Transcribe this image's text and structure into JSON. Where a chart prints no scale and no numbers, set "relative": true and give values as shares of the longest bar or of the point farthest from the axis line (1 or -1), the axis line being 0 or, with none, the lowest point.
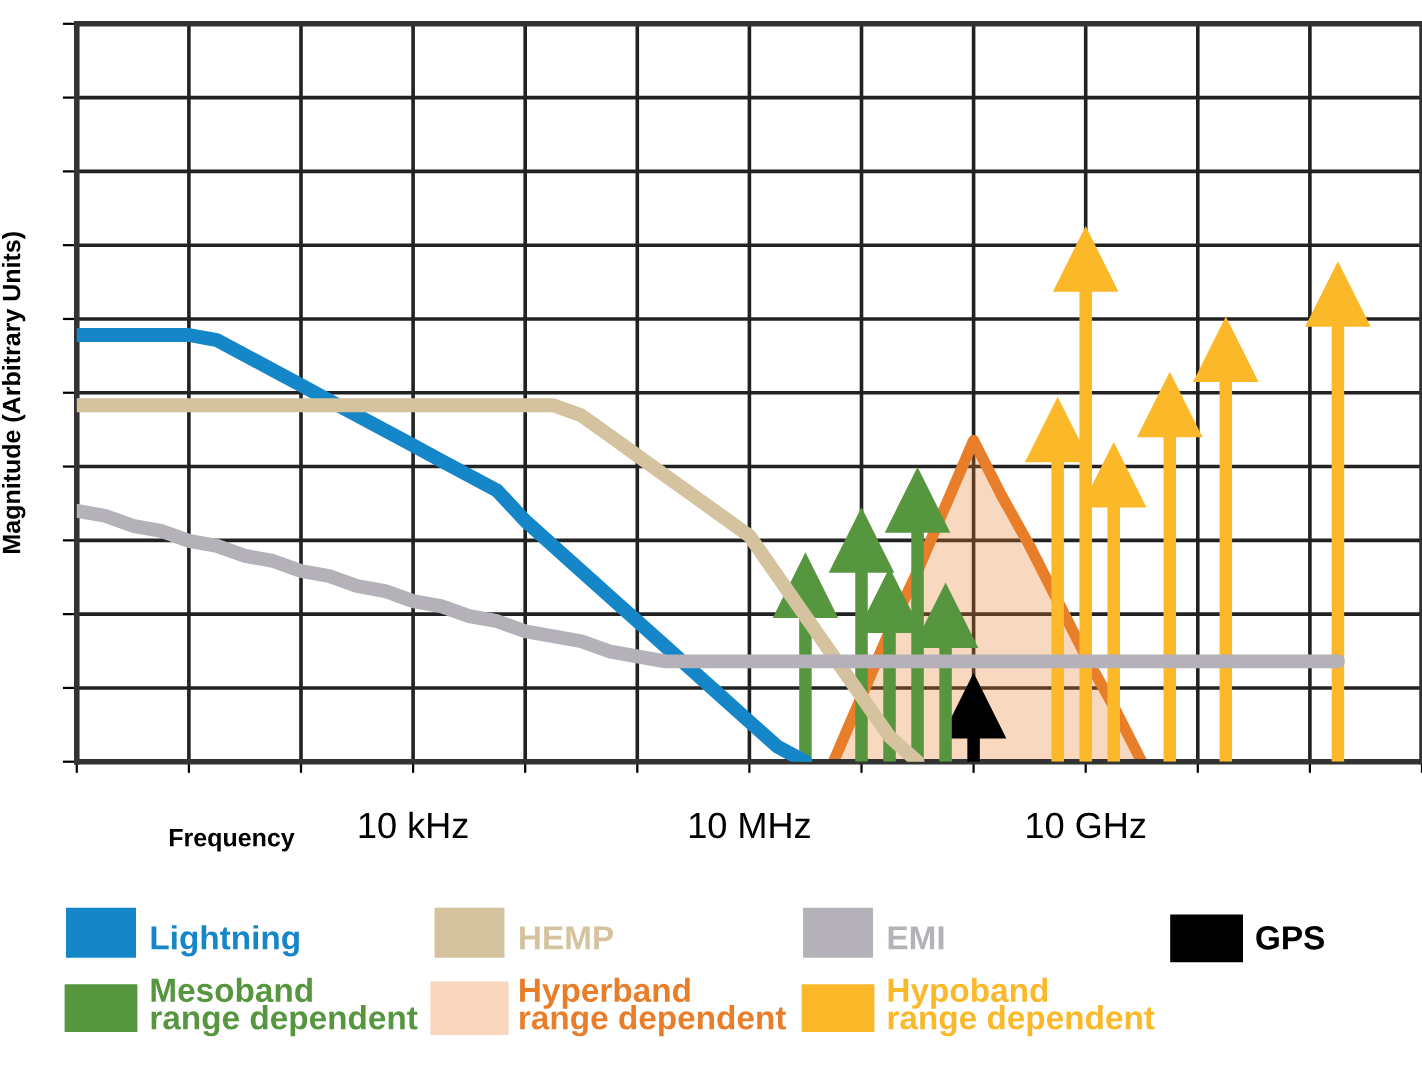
{
  "chart_data": {
    "type": "line",
    "relative": true,
    "ylabel": "Magnitude (Arbitrary Units)",
    "xlabel": "Frequency",
    "categories": [
      null,
      null,
      null,
      null,
      null,
      null,
      null,
      null,
      null,
      null,
      null,
      null,
      "10 kHz",
      null,
      null,
      null,
      null,
      null,
      null,
      null,
      null,
      null,
      null,
      null,
      "10 MHz",
      null,
      null,
      null,
      null,
      null,
      null,
      null,
      null,
      null,
      null,
      null,
      "10 GHz",
      null,
      null,
      null,
      null,
      null,
      null,
      null,
      null,
      null,
      null,
      null,
      null
    ],
    "grid": true,
    "legend": "bottom",
    "series": [
      {
        "name": "Lightning",
        "color": "#1586c8",
        "values": [
          0.85,
          0.85,
          0.85,
          0.85,
          0.85,
          0.84,
          0.81,
          0.78,
          0.75,
          0.72,
          0.69,
          0.66,
          0.63,
          0.6,
          0.57,
          0.54,
          0.48,
          0.43,
          0.38,
          0.33,
          0.28,
          0.23,
          0.18,
          0.13,
          0.08,
          0.03,
          0,
          null,
          null,
          null,
          null,
          null,
          null,
          null,
          null,
          null,
          null,
          null,
          null,
          null,
          null,
          null,
          null,
          null,
          null,
          null,
          null,
          null,
          null
        ]
      },
      {
        "name": "HEMP",
        "color": "#d5c39f",
        "values": [
          0.71,
          0.71,
          0.71,
          0.71,
          0.71,
          0.71,
          0.71,
          0.71,
          0.71,
          0.71,
          0.71,
          0.71,
          0.71,
          0.71,
          0.71,
          0.71,
          0.71,
          0.71,
          0.69,
          0.65,
          0.61,
          0.57,
          0.53,
          0.49,
          0.45,
          0.37,
          0.29,
          0.21,
          0.13,
          0.05,
          0,
          null,
          null,
          null,
          null,
          null,
          null,
          null,
          null,
          null,
          null,
          null,
          null,
          null,
          null,
          null,
          null,
          null,
          null
        ]
      },
      {
        "name": "EMI",
        "color": "#b4b2b8",
        "values": [
          0.5,
          0.49,
          0.47,
          0.46,
          0.44,
          0.43,
          0.41,
          0.4,
          0.38,
          0.37,
          0.35,
          0.34,
          0.32,
          0.31,
          0.29,
          0.28,
          0.26,
          0.25,
          0.24,
          0.22,
          0.21,
          0.2,
          0.2,
          0.2,
          0.2,
          0.2,
          0.2,
          0.2,
          0.2,
          0.2,
          0.2,
          0.2,
          0.2,
          0.2,
          0.2,
          0.2,
          0.2,
          0.2,
          0.2,
          0.2,
          0.2,
          0.2,
          0.2,
          0.2,
          0.2,
          0.2,
          null,
          null,
          null
        ]
      },
      {
        "name": "GPS",
        "type": "lollipop",
        "marker": "triangle",
        "color": "#000000",
        "values": [
          null,
          null,
          null,
          null,
          null,
          null,
          null,
          null,
          null,
          null,
          null,
          null,
          null,
          null,
          null,
          null,
          null,
          null,
          null,
          null,
          null,
          null,
          null,
          null,
          null,
          null,
          null,
          null,
          null,
          null,
          null,
          null,
          0.11,
          null,
          null,
          null,
          null,
          null,
          null,
          null,
          null,
          null,
          null,
          null,
          null,
          null,
          null,
          null,
          null
        ]
      },
      {
        "name": "Mesoband\nrange dependent",
        "type": "lollipop",
        "marker": "triangle",
        "color": "#55963f",
        "values": [
          null,
          null,
          null,
          null,
          null,
          null,
          null,
          null,
          null,
          null,
          null,
          null,
          null,
          null,
          null,
          null,
          null,
          null,
          null,
          null,
          null,
          null,
          null,
          null,
          null,
          null,
          0.35,
          null,
          0.44,
          0.32,
          0.52,
          0.29,
          null,
          null,
          null,
          null,
          null,
          null,
          null,
          null,
          null,
          null,
          null,
          null,
          null,
          null,
          null,
          null,
          null
        ]
      },
      {
        "name": "Hyperband\nrange dependent",
        "type": "area",
        "color": "#e97e2a",
        "values": [
          null,
          null,
          null,
          null,
          null,
          null,
          null,
          null,
          null,
          null,
          null,
          null,
          null,
          null,
          null,
          null,
          null,
          null,
          null,
          null,
          null,
          null,
          null,
          null,
          null,
          null,
          null,
          0,
          0.13,
          0.26,
          0.38,
          0.51,
          0.64,
          0.53,
          0.43,
          0.32,
          0.21,
          0.11,
          0,
          null,
          null,
          null,
          null,
          null,
          null,
          null,
          null,
          null,
          null
        ]
      },
      {
        "name": "Hypoband\nrange dependent",
        "type": "lollipop",
        "marker": "triangle",
        "color": "#fbb829",
        "values": [
          null,
          null,
          null,
          null,
          null,
          null,
          null,
          null,
          null,
          null,
          null,
          null,
          null,
          null,
          null,
          null,
          null,
          null,
          null,
          null,
          null,
          null,
          null,
          null,
          null,
          null,
          null,
          null,
          null,
          null,
          null,
          null,
          null,
          null,
          null,
          0.66,
          1.0,
          0.57,
          null,
          0.71,
          null,
          0.82,
          null,
          null,
          null,
          0.93,
          null,
          null,
          null
        ]
      }
    ]
  }
}
